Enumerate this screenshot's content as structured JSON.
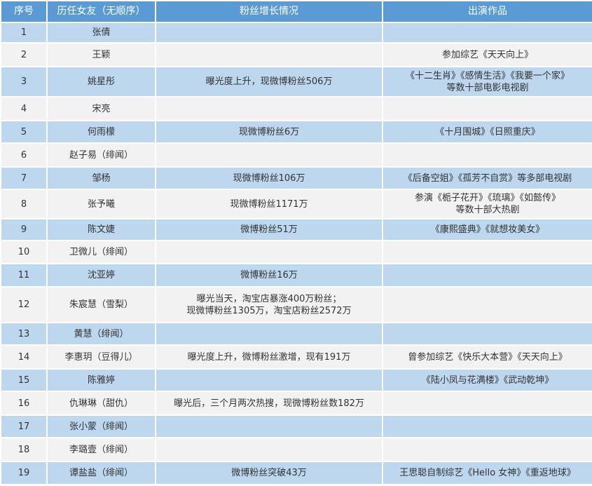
{
  "headers": [
    "序号",
    "历任女友（无顺序）",
    "粉丝增长情况",
    "出演作品"
  ],
  "rows": [
    {
      "no": "1",
      "name": "张倩",
      "fans": "",
      "works": ""
    },
    {
      "no": "2",
      "name": "王颖",
      "fans": "",
      "works": "参加综艺《天天向上》"
    },
    {
      "no": "3",
      "name": "姚星彤",
      "fans": "曝光度上升，现微博粉丝506万",
      "works": "《十二生肖》《感情生活》《我要一个家》\n等数十部电影电视剧"
    },
    {
      "no": "4",
      "name": "宋亮",
      "fans": "",
      "works": ""
    },
    {
      "no": "5",
      "name": "何雨檬",
      "fans": "现微博粉丝6万",
      "works": "《十月围城》《日照重庆》"
    },
    {
      "no": "6",
      "name": "赵子易（绯闻）",
      "fans": "",
      "works": ""
    },
    {
      "no": "7",
      "name": "邹杨",
      "fans": "现微博粉丝106万",
      "works": "《后备空姐》《孤芳不自赏》等多部电视剧"
    },
    {
      "no": "8",
      "name": "张予曦",
      "fans": "现微博粉丝1171万",
      "works": "参演《栀子花开》《琉璃》《如懿传》\n等数十部大热剧"
    },
    {
      "no": "9",
      "name": "陈文婕",
      "fans": "微博粉丝51万",
      "works": "《康熙盛典》《就想妆美女》"
    },
    {
      "no": "10",
      "name": "卫微儿（绯闻）",
      "fans": "",
      "works": ""
    },
    {
      "no": "11",
      "name": "沈亚婷",
      "fans": "微博粉丝16万",
      "works": ""
    },
    {
      "no": "12",
      "name": "朱宸慧（雪梨）",
      "fans": "曝光当天，淘宝店暴涨400万粉丝；\n现微博粉丝1305万，淘宝店粉丝2572万",
      "works": ""
    },
    {
      "no": "13",
      "name": "黄慧（绯闻）",
      "fans": "",
      "works": ""
    },
    {
      "no": "14",
      "name": "李惠玥（豆得儿）",
      "fans": "曝光度上升，微博粉丝激增，现有191万",
      "works": "曾参加综艺《快乐大本营》《天天向上》"
    },
    {
      "no": "15",
      "name": "陈雅婷",
      "fans": "",
      "works": "《陆小凤与花满楼》《武动乾坤》"
    },
    {
      "no": "16",
      "name": "仇琳琳（甜仇）",
      "fans": "曝光后，三个月两次热搜，现微博粉丝数182万",
      "works": ""
    },
    {
      "no": "17",
      "name": "张小蒙（绯闻）",
      "fans": "",
      "works": ""
    },
    {
      "no": "18",
      "name": "李璐壹（绯闻）",
      "fans": "",
      "works": ""
    },
    {
      "no": "19",
      "name": "谭盐盐（绯闻）",
      "fans": "微博粉丝突破43万",
      "works": "王思聪自制综艺《Hello 女神》《重返地球》"
    }
  ]
}
